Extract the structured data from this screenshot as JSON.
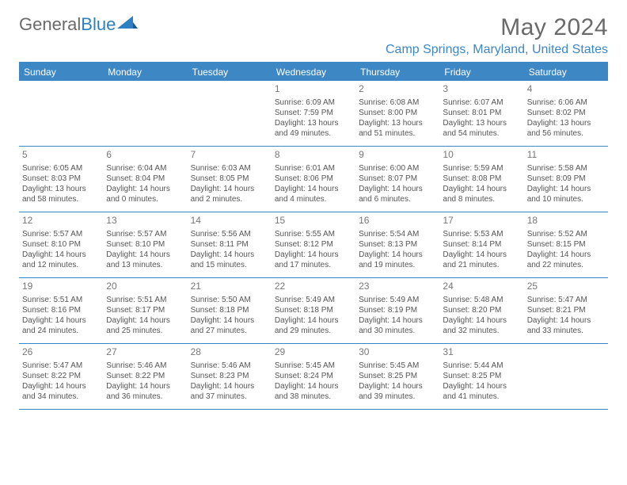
{
  "logo": {
    "text_gray": "General",
    "text_blue": "Blue"
  },
  "title": "May 2024",
  "location": "Camp Springs, Maryland, United States",
  "colors": {
    "brand_blue": "#3d87c5",
    "text_gray": "#6a6a6a",
    "cell_text": "#555555",
    "background": "#ffffff"
  },
  "day_headers": [
    "Sunday",
    "Monday",
    "Tuesday",
    "Wednesday",
    "Thursday",
    "Friday",
    "Saturday"
  ],
  "weeks": [
    [
      null,
      null,
      null,
      {
        "n": "1",
        "sr": "6:09 AM",
        "ss": "7:59 PM",
        "dl1": "Daylight: 13 hours",
        "dl2": "and 49 minutes."
      },
      {
        "n": "2",
        "sr": "6:08 AM",
        "ss": "8:00 PM",
        "dl1": "Daylight: 13 hours",
        "dl2": "and 51 minutes."
      },
      {
        "n": "3",
        "sr": "6:07 AM",
        "ss": "8:01 PM",
        "dl1": "Daylight: 13 hours",
        "dl2": "and 54 minutes."
      },
      {
        "n": "4",
        "sr": "6:06 AM",
        "ss": "8:02 PM",
        "dl1": "Daylight: 13 hours",
        "dl2": "and 56 minutes."
      }
    ],
    [
      {
        "n": "5",
        "sr": "6:05 AM",
        "ss": "8:03 PM",
        "dl1": "Daylight: 13 hours",
        "dl2": "and 58 minutes."
      },
      {
        "n": "6",
        "sr": "6:04 AM",
        "ss": "8:04 PM",
        "dl1": "Daylight: 14 hours",
        "dl2": "and 0 minutes."
      },
      {
        "n": "7",
        "sr": "6:03 AM",
        "ss": "8:05 PM",
        "dl1": "Daylight: 14 hours",
        "dl2": "and 2 minutes."
      },
      {
        "n": "8",
        "sr": "6:01 AM",
        "ss": "8:06 PM",
        "dl1": "Daylight: 14 hours",
        "dl2": "and 4 minutes."
      },
      {
        "n": "9",
        "sr": "6:00 AM",
        "ss": "8:07 PM",
        "dl1": "Daylight: 14 hours",
        "dl2": "and 6 minutes."
      },
      {
        "n": "10",
        "sr": "5:59 AM",
        "ss": "8:08 PM",
        "dl1": "Daylight: 14 hours",
        "dl2": "and 8 minutes."
      },
      {
        "n": "11",
        "sr": "5:58 AM",
        "ss": "8:09 PM",
        "dl1": "Daylight: 14 hours",
        "dl2": "and 10 minutes."
      }
    ],
    [
      {
        "n": "12",
        "sr": "5:57 AM",
        "ss": "8:10 PM",
        "dl1": "Daylight: 14 hours",
        "dl2": "and 12 minutes."
      },
      {
        "n": "13",
        "sr": "5:57 AM",
        "ss": "8:10 PM",
        "dl1": "Daylight: 14 hours",
        "dl2": "and 13 minutes."
      },
      {
        "n": "14",
        "sr": "5:56 AM",
        "ss": "8:11 PM",
        "dl1": "Daylight: 14 hours",
        "dl2": "and 15 minutes."
      },
      {
        "n": "15",
        "sr": "5:55 AM",
        "ss": "8:12 PM",
        "dl1": "Daylight: 14 hours",
        "dl2": "and 17 minutes."
      },
      {
        "n": "16",
        "sr": "5:54 AM",
        "ss": "8:13 PM",
        "dl1": "Daylight: 14 hours",
        "dl2": "and 19 minutes."
      },
      {
        "n": "17",
        "sr": "5:53 AM",
        "ss": "8:14 PM",
        "dl1": "Daylight: 14 hours",
        "dl2": "and 21 minutes."
      },
      {
        "n": "18",
        "sr": "5:52 AM",
        "ss": "8:15 PM",
        "dl1": "Daylight: 14 hours",
        "dl2": "and 22 minutes."
      }
    ],
    [
      {
        "n": "19",
        "sr": "5:51 AM",
        "ss": "8:16 PM",
        "dl1": "Daylight: 14 hours",
        "dl2": "and 24 minutes."
      },
      {
        "n": "20",
        "sr": "5:51 AM",
        "ss": "8:17 PM",
        "dl1": "Daylight: 14 hours",
        "dl2": "and 25 minutes."
      },
      {
        "n": "21",
        "sr": "5:50 AM",
        "ss": "8:18 PM",
        "dl1": "Daylight: 14 hours",
        "dl2": "and 27 minutes."
      },
      {
        "n": "22",
        "sr": "5:49 AM",
        "ss": "8:18 PM",
        "dl1": "Daylight: 14 hours",
        "dl2": "and 29 minutes."
      },
      {
        "n": "23",
        "sr": "5:49 AM",
        "ss": "8:19 PM",
        "dl1": "Daylight: 14 hours",
        "dl2": "and 30 minutes."
      },
      {
        "n": "24",
        "sr": "5:48 AM",
        "ss": "8:20 PM",
        "dl1": "Daylight: 14 hours",
        "dl2": "and 32 minutes."
      },
      {
        "n": "25",
        "sr": "5:47 AM",
        "ss": "8:21 PM",
        "dl1": "Daylight: 14 hours",
        "dl2": "and 33 minutes."
      }
    ],
    [
      {
        "n": "26",
        "sr": "5:47 AM",
        "ss": "8:22 PM",
        "dl1": "Daylight: 14 hours",
        "dl2": "and 34 minutes."
      },
      {
        "n": "27",
        "sr": "5:46 AM",
        "ss": "8:22 PM",
        "dl1": "Daylight: 14 hours",
        "dl2": "and 36 minutes."
      },
      {
        "n": "28",
        "sr": "5:46 AM",
        "ss": "8:23 PM",
        "dl1": "Daylight: 14 hours",
        "dl2": "and 37 minutes."
      },
      {
        "n": "29",
        "sr": "5:45 AM",
        "ss": "8:24 PM",
        "dl1": "Daylight: 14 hours",
        "dl2": "and 38 minutes."
      },
      {
        "n": "30",
        "sr": "5:45 AM",
        "ss": "8:25 PM",
        "dl1": "Daylight: 14 hours",
        "dl2": "and 39 minutes."
      },
      {
        "n": "31",
        "sr": "5:44 AM",
        "ss": "8:25 PM",
        "dl1": "Daylight: 14 hours",
        "dl2": "and 41 minutes."
      },
      null
    ]
  ],
  "labels": {
    "sunrise_prefix": "Sunrise: ",
    "sunset_prefix": "Sunset: "
  }
}
